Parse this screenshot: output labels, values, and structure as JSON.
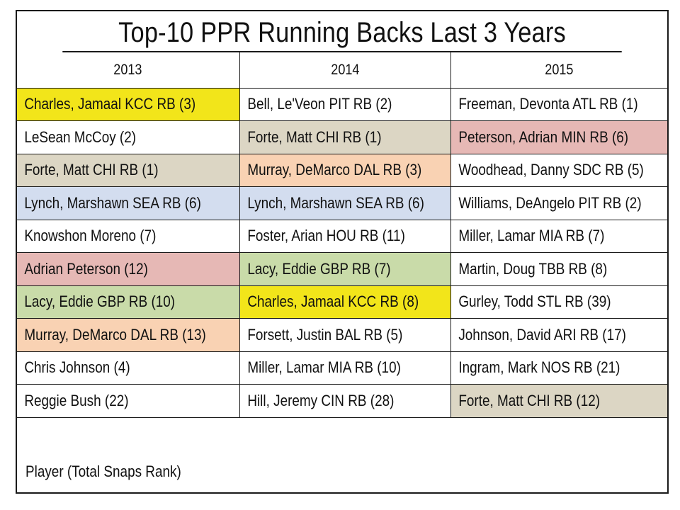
{
  "title": "Top-10 PPR Running Backs Last 3 Years",
  "columns": [
    "2013",
    "2014",
    "2015"
  ],
  "highlight_colors": {
    "yellow": "#f2e51a",
    "tan": "#dcd6c4",
    "orange": "#f9d2b3",
    "blue": "#d3ddef",
    "pink": "#e6b8b5",
    "green": "#c9dba9"
  },
  "rows": [
    [
      {
        "text": "Charles, Jamaal KCC RB (3)",
        "hl": "yellow"
      },
      {
        "text": "Bell, Le'Veon PIT RB (2)",
        "hl": ""
      },
      {
        "text": "Freeman, Devonta ATL RB (1)",
        "hl": ""
      }
    ],
    [
      {
        "text": "LeSean McCoy (2)",
        "hl": ""
      },
      {
        "text": "Forte, Matt CHI RB (1)",
        "hl": "tan"
      },
      {
        "text": "Peterson, Adrian MIN RB (6)",
        "hl": "pink"
      }
    ],
    [
      {
        "text": "Forte, Matt CHI RB (1)",
        "hl": "tan"
      },
      {
        "text": "Murray, DeMarco DAL RB (3)",
        "hl": "orange"
      },
      {
        "text": "Woodhead, Danny SDC RB (5)",
        "hl": ""
      }
    ],
    [
      {
        "text": "Lynch, Marshawn SEA RB (6)",
        "hl": "blue"
      },
      {
        "text": "Lynch, Marshawn SEA RB (6)",
        "hl": "blue"
      },
      {
        "text": "Williams, DeAngelo PIT RB (2)",
        "hl": ""
      }
    ],
    [
      {
        "text": "Knowshon Moreno (7)",
        "hl": ""
      },
      {
        "text": "Foster, Arian HOU RB (11)",
        "hl": ""
      },
      {
        "text": "Miller, Lamar MIA RB (7)",
        "hl": ""
      }
    ],
    [
      {
        "text": "Adrian Peterson (12)",
        "hl": "pink"
      },
      {
        "text": "Lacy, Eddie GBP RB (7)",
        "hl": "green"
      },
      {
        "text": "Martin, Doug TBB RB (8)",
        "hl": ""
      }
    ],
    [
      {
        "text": "Lacy, Eddie GBP RB (10)",
        "hl": "green"
      },
      {
        "text": "Charles, Jamaal KCC RB (8)",
        "hl": "yellow"
      },
      {
        "text": "Gurley, Todd STL RB (39)",
        "hl": ""
      }
    ],
    [
      {
        "text": "Murray, DeMarco DAL RB (13)",
        "hl": "orange"
      },
      {
        "text": "Forsett, Justin BAL RB (5)",
        "hl": ""
      },
      {
        "text": "Johnson, David ARI RB (17)",
        "hl": ""
      }
    ],
    [
      {
        "text": "Chris Johnson (4)",
        "hl": ""
      },
      {
        "text": "Miller, Lamar MIA RB (10)",
        "hl": ""
      },
      {
        "text": "Ingram, Mark NOS RB (21)",
        "hl": ""
      }
    ],
    [
      {
        "text": "Reggie Bush (22)",
        "hl": ""
      },
      {
        "text": "Hill, Jeremy CIN RB (28)",
        "hl": ""
      },
      {
        "text": "Forte, Matt CHI RB (12)",
        "hl": "tan"
      }
    ]
  ],
  "footer": "Player (Total Snaps Rank)"
}
